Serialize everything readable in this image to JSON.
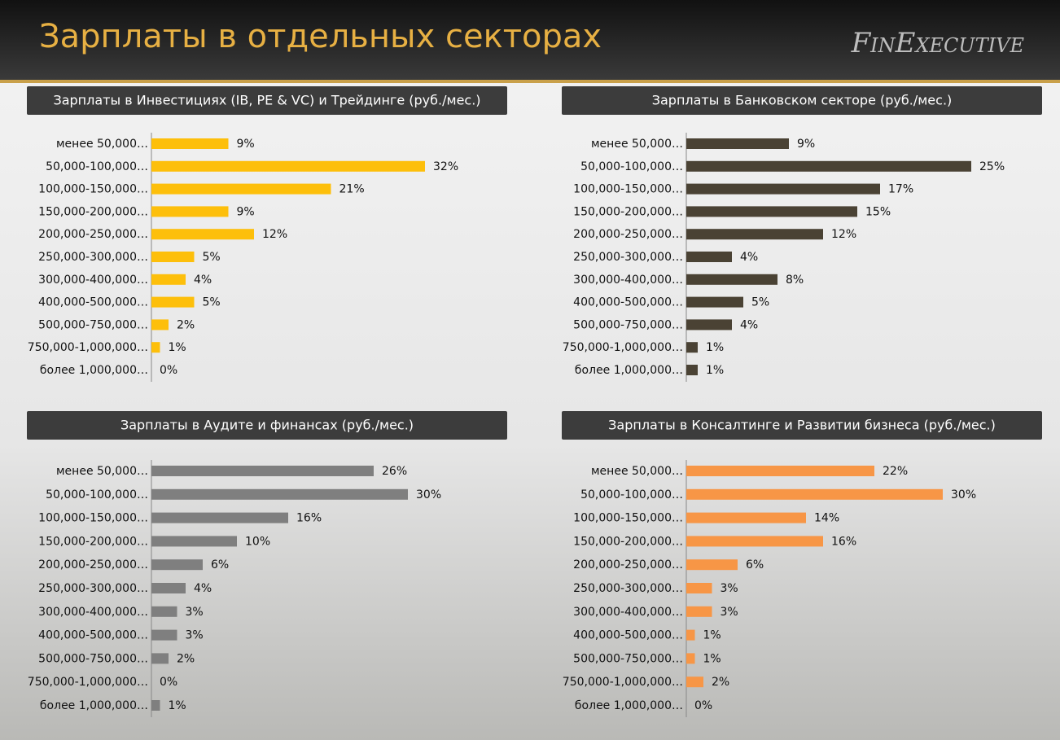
{
  "header": {
    "title": "Зарплаты в отдельных секторах",
    "logo": "FinExecutive"
  },
  "chart_data": [
    {
      "type": "bar",
      "title": "Зарплаты в Инвестициях (IB, PE & VC) и Трейдинге (руб./мес.)",
      "categories": [
        "менее 50,000…",
        "50,000-100,000…",
        "100,000-150,000…",
        "150,000-200,000…",
        "200,000-250,000…",
        "250,000-300,000…",
        "300,000-400,000…",
        "400,000-500,000…",
        "500,000-750,000…",
        "750,000-1,000,000…",
        "более 1,000,000…"
      ],
      "values": [
        9,
        32,
        21,
        9,
        12,
        5,
        4,
        5,
        2,
        1,
        0
      ],
      "value_labels": [
        "9%",
        "32%",
        "21%",
        "9%",
        "12%",
        "5%",
        "4%",
        "5%",
        "2%",
        "1%",
        "0%"
      ],
      "color": "#fdbf0b",
      "xlim": [
        0,
        40
      ]
    },
    {
      "type": "bar",
      "title": "Зарплаты в Банковском секторе (руб./мес.)",
      "categories": [
        "менее 50,000…",
        "50,000-100,000…",
        "100,000-150,000…",
        "150,000-200,000…",
        "200,000-250,000…",
        "250,000-300,000…",
        "300,000-400,000…",
        "400,000-500,000…",
        "500,000-750,000…",
        "750,000-1,000,000…",
        "более 1,000,000…"
      ],
      "values": [
        9,
        25,
        17,
        15,
        12,
        4,
        8,
        5,
        4,
        1,
        1
      ],
      "value_labels": [
        "9%",
        "25%",
        "17%",
        "15%",
        "12%",
        "4%",
        "8%",
        "5%",
        "4%",
        "1%",
        "1%"
      ],
      "color": "#4a4234",
      "xlim": [
        0,
        30
      ]
    },
    {
      "type": "bar",
      "title": "Зарплаты в Аудите и финансах (руб./мес.)",
      "categories": [
        "менее 50,000…",
        "50,000-100,000…",
        "100,000-150,000…",
        "150,000-200,000…",
        "200,000-250,000…",
        "250,000-300,000…",
        "300,000-400,000…",
        "400,000-500,000…",
        "500,000-750,000…",
        "750,000-1,000,000…",
        "более 1,000,000…"
      ],
      "values": [
        26,
        30,
        16,
        10,
        6,
        4,
        3,
        3,
        2,
        0,
        1
      ],
      "value_labels": [
        "26%",
        "30%",
        "16%",
        "10%",
        "6%",
        "4%",
        "3%",
        "3%",
        "2%",
        "0%",
        "1%"
      ],
      "color": "#7f7f7f",
      "xlim": [
        0,
        40
      ]
    },
    {
      "type": "bar",
      "title": "Зарплаты в Консалтинге и Развитии бизнеса (руб./мес.)",
      "categories": [
        "менее 50,000…",
        "50,000-100,000…",
        "100,000-150,000…",
        "150,000-200,000…",
        "200,000-250,000…",
        "250,000-300,000…",
        "300,000-400,000…",
        "400,000-500,000…",
        "500,000-750,000…",
        "750,000-1,000,000…",
        "более 1,000,000…"
      ],
      "values": [
        22,
        30,
        14,
        16,
        6,
        3,
        3,
        1,
        1,
        2,
        0
      ],
      "value_labels": [
        "22%",
        "30%",
        "14%",
        "16%",
        "6%",
        "3%",
        "3%",
        "1%",
        "1%",
        "2%",
        "0%"
      ],
      "color": "#f79646",
      "xlim": [
        0,
        40
      ]
    }
  ]
}
